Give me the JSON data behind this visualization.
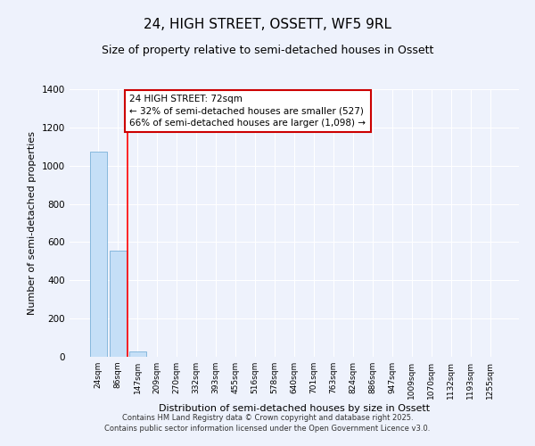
{
  "title": "24, HIGH STREET, OSSETT, WF5 9RL",
  "subtitle": "Size of property relative to semi-detached houses in Ossett",
  "xlabel": "Distribution of semi-detached houses by size in Ossett",
  "ylabel": "Number of semi-detached properties",
  "categories": [
    "24sqm",
    "86sqm",
    "147sqm",
    "209sqm",
    "270sqm",
    "332sqm",
    "393sqm",
    "455sqm",
    "516sqm",
    "578sqm",
    "640sqm",
    "701sqm",
    "763sqm",
    "824sqm",
    "886sqm",
    "947sqm",
    "1009sqm",
    "1070sqm",
    "1132sqm",
    "1193sqm",
    "1255sqm"
  ],
  "values": [
    1075,
    555,
    30,
    0,
    0,
    0,
    0,
    0,
    0,
    0,
    0,
    0,
    0,
    0,
    0,
    0,
    0,
    0,
    0,
    0,
    0
  ],
  "bar_color": "#c5dff7",
  "bar_edge_color": "#7ab0d8",
  "ylim": [
    0,
    1400
  ],
  "red_line_x": 1.5,
  "annotation_title": "24 HIGH STREET: 72sqm",
  "annotation_line1": "← 32% of semi-detached houses are smaller (527)",
  "annotation_line2": "66% of semi-detached houses are larger (1,098) →",
  "annotation_box_color": "#cc0000",
  "annotation_fill": "#ffffff",
  "footnote1": "Contains HM Land Registry data © Crown copyright and database right 2025.",
  "footnote2": "Contains public sector information licensed under the Open Government Licence v3.0.",
  "background_color": "#eef2fc",
  "grid_color": "#ffffff",
  "title_fontsize": 11,
  "subtitle_fontsize": 9,
  "axis_label_fontsize": 8,
  "tick_fontsize": 6.5,
  "annotation_fontsize": 7.5,
  "footnote_fontsize": 6
}
